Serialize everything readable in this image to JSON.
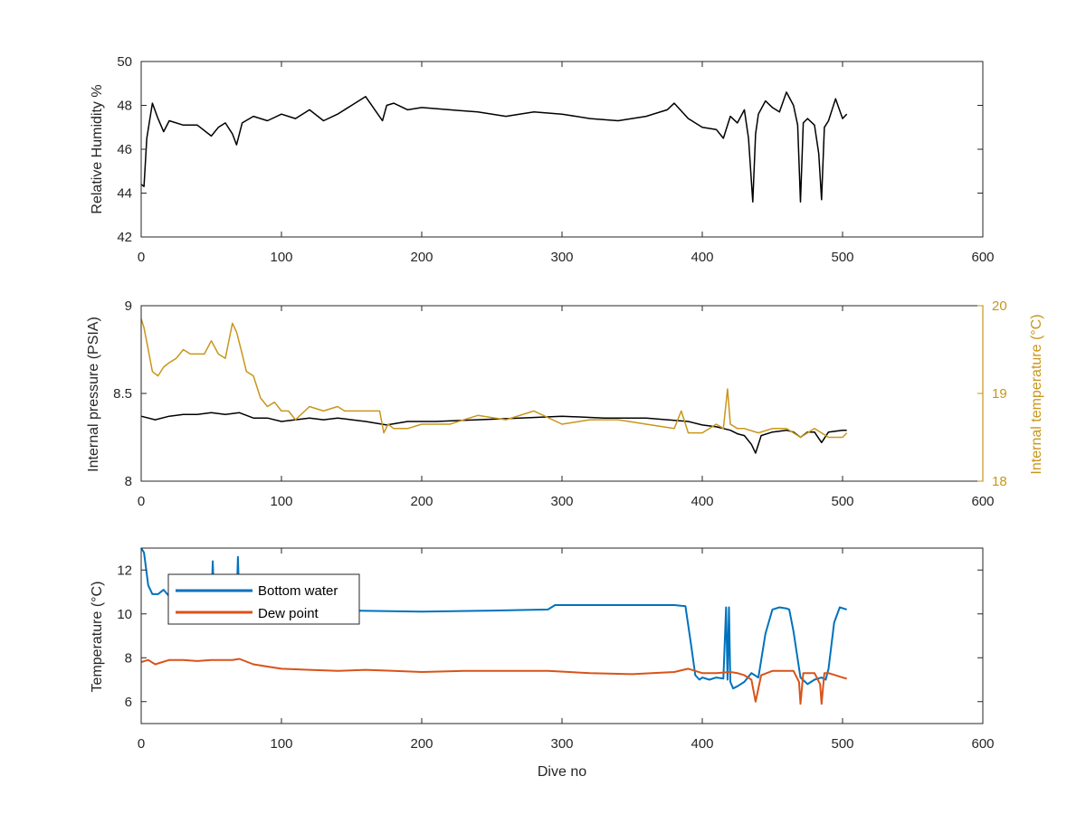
{
  "chart_data": [
    {
      "type": "line",
      "title": "",
      "xlabel": "",
      "ylabel": "Relative Humidity %",
      "xlim": [
        0,
        600
      ],
      "ylim": [
        42,
        50
      ],
      "xticks": [
        "0",
        "100",
        "200",
        "300",
        "400",
        "500",
        "600"
      ],
      "yticks": [
        "42",
        "44",
        "46",
        "48",
        "50"
      ],
      "grid": false,
      "series": [
        {
          "color": "#000000",
          "x": [
            0,
            2,
            4,
            8,
            12,
            16,
            20,
            30,
            40,
            50,
            55,
            60,
            65,
            68,
            72,
            80,
            90,
            100,
            110,
            120,
            130,
            140,
            150,
            160,
            172,
            175,
            180,
            190,
            200,
            220,
            240,
            260,
            280,
            300,
            320,
            340,
            360,
            375,
            380,
            390,
            400,
            410,
            415,
            420,
            425,
            430,
            433,
            436,
            438,
            440,
            445,
            450,
            455,
            460,
            465,
            468,
            470,
            472,
            475,
            480,
            483,
            485,
            487,
            490,
            495,
            500,
            503
          ],
          "y": [
            44.4,
            44.3,
            46.5,
            48.1,
            47.4,
            46.8,
            47.3,
            47.1,
            47.1,
            46.6,
            47.0,
            47.2,
            46.7,
            46.2,
            47.2,
            47.5,
            47.3,
            47.6,
            47.4,
            47.8,
            47.3,
            47.6,
            48.0,
            48.4,
            47.3,
            48.0,
            48.1,
            47.8,
            47.9,
            47.8,
            47.7,
            47.5,
            47.7,
            47.6,
            47.4,
            47.3,
            47.5,
            47.8,
            48.1,
            47.4,
            47.0,
            46.9,
            46.5,
            47.5,
            47.2,
            47.8,
            46.5,
            43.6,
            46.7,
            47.6,
            48.2,
            47.9,
            47.7,
            48.6,
            48.0,
            47.1,
            43.6,
            47.2,
            47.4,
            47.1,
            45.8,
            43.7,
            47.0,
            47.3,
            48.3,
            47.4,
            47.6
          ]
        }
      ]
    },
    {
      "type": "line",
      "title": "",
      "xlabel": "",
      "ylabel": "Internal pressure (PSIA)",
      "y2label": "Internal temperature (°C)",
      "xlim": [
        0,
        600
      ],
      "ylim": [
        8,
        9
      ],
      "y2lim": [
        18,
        20
      ],
      "xticks": [
        "0",
        "100",
        "200",
        "300",
        "400",
        "500",
        "600"
      ],
      "yticks": [
        "8",
        "8.5",
        "9"
      ],
      "y2ticks": [
        "18",
        "19",
        "20"
      ],
      "grid": false,
      "series": [
        {
          "axis": "left",
          "color": "#000000",
          "x": [
            0,
            10,
            20,
            30,
            40,
            50,
            60,
            70,
            80,
            90,
            100,
            110,
            120,
            130,
            140,
            150,
            160,
            175,
            190,
            210,
            240,
            270,
            300,
            330,
            360,
            390,
            400,
            410,
            420,
            425,
            430,
            435,
            438,
            442,
            450,
            460,
            465,
            470,
            475,
            480,
            485,
            490,
            500,
            503
          ],
          "y": [
            8.37,
            8.35,
            8.37,
            8.38,
            8.38,
            8.39,
            8.38,
            8.39,
            8.36,
            8.36,
            8.34,
            8.35,
            8.36,
            8.35,
            8.36,
            8.35,
            8.34,
            8.32,
            8.34,
            8.34,
            8.35,
            8.36,
            8.37,
            8.36,
            8.36,
            8.34,
            8.32,
            8.31,
            8.29,
            8.27,
            8.26,
            8.21,
            8.16,
            8.26,
            8.28,
            8.29,
            8.28,
            8.25,
            8.28,
            8.28,
            8.22,
            8.28,
            8.29,
            8.29
          ]
        },
        {
          "axis": "right",
          "color": "#C8961B",
          "x": [
            0,
            2,
            5,
            8,
            12,
            16,
            20,
            25,
            30,
            35,
            40,
            45,
            50,
            55,
            60,
            65,
            68,
            72,
            75,
            80,
            85,
            90,
            95,
            100,
            105,
            110,
            120,
            130,
            140,
            145,
            150,
            160,
            170,
            173,
            176,
            180,
            190,
            200,
            220,
            240,
            260,
            280,
            300,
            320,
            340,
            360,
            380,
            385,
            390,
            400,
            410,
            415,
            418,
            420,
            425,
            430,
            440,
            450,
            460,
            470,
            480,
            490,
            500,
            503
          ],
          "y": [
            19.85,
            19.75,
            19.5,
            19.25,
            19.2,
            19.3,
            19.35,
            19.4,
            19.5,
            19.45,
            19.45,
            19.45,
            19.6,
            19.45,
            19.4,
            19.8,
            19.7,
            19.45,
            19.25,
            19.2,
            18.95,
            18.85,
            18.9,
            18.8,
            18.8,
            18.7,
            18.85,
            18.8,
            18.85,
            18.8,
            18.8,
            18.8,
            18.8,
            18.55,
            18.65,
            18.6,
            18.6,
            18.65,
            18.65,
            18.75,
            18.7,
            18.8,
            18.65,
            18.7,
            18.7,
            18.65,
            18.6,
            18.8,
            18.55,
            18.55,
            18.65,
            18.6,
            19.05,
            18.65,
            18.6,
            18.6,
            18.55,
            18.6,
            18.6,
            18.5,
            18.6,
            18.5,
            18.5,
            18.55
          ]
        }
      ]
    },
    {
      "type": "line",
      "title": "",
      "xlabel": "Dive no",
      "ylabel": "Temperature (°C)",
      "xlim": [
        0,
        600
      ],
      "ylim": [
        5,
        13
      ],
      "xticks": [
        "0",
        "100",
        "200",
        "300",
        "400",
        "500",
        "600"
      ],
      "yticks": [
        "6",
        "8",
        "10",
        "12"
      ],
      "grid": false,
      "legend": "top-left",
      "series": [
        {
          "name": "Bottom water",
          "color": "#0072BD",
          "x": [
            0,
            2,
            5,
            8,
            12,
            16,
            20,
            25,
            30,
            40,
            50,
            51,
            52,
            55,
            60,
            68,
            69,
            70,
            72,
            80,
            100,
            120,
            150,
            200,
            250,
            290,
            295,
            300,
            350,
            380,
            388,
            392,
            395,
            398,
            400,
            405,
            410,
            415,
            417,
            418,
            419,
            420,
            422,
            425,
            430,
            435,
            440,
            445,
            450,
            455,
            460,
            462,
            465,
            470,
            475,
            480,
            485,
            488,
            490,
            494,
            498,
            503
          ],
          "y": [
            13.0,
            12.8,
            11.3,
            10.9,
            10.9,
            11.1,
            10.8,
            10.7,
            10.6,
            10.55,
            10.5,
            12.4,
            10.5,
            10.45,
            10.4,
            10.45,
            12.6,
            10.4,
            10.35,
            10.3,
            10.2,
            10.2,
            10.15,
            10.1,
            10.15,
            10.2,
            10.4,
            10.4,
            10.4,
            10.4,
            10.35,
            8.6,
            7.2,
            7.0,
            7.1,
            7.0,
            7.1,
            7.05,
            10.3,
            7.0,
            10.3,
            6.9,
            6.6,
            6.7,
            6.9,
            7.3,
            7.1,
            9.1,
            10.2,
            10.3,
            10.25,
            10.2,
            9.2,
            7.1,
            6.8,
            7.0,
            7.1,
            7.0,
            7.5,
            9.6,
            10.3,
            10.2
          ]
        },
        {
          "name": "Dew point",
          "color": "#D95319",
          "x": [
            0,
            5,
            10,
            20,
            30,
            40,
            50,
            60,
            65,
            70,
            80,
            90,
            100,
            120,
            140,
            160,
            180,
            200,
            230,
            260,
            290,
            320,
            350,
            380,
            390,
            400,
            410,
            420,
            425,
            430,
            435,
            438,
            442,
            450,
            460,
            465,
            469,
            470,
            472,
            480,
            484,
            485,
            487,
            490,
            500,
            503
          ],
          "y": [
            7.8,
            7.9,
            7.7,
            7.9,
            7.9,
            7.85,
            7.9,
            7.9,
            7.9,
            7.95,
            7.7,
            7.6,
            7.5,
            7.45,
            7.4,
            7.45,
            7.4,
            7.35,
            7.4,
            7.4,
            7.4,
            7.3,
            7.25,
            7.35,
            7.5,
            7.3,
            7.3,
            7.35,
            7.3,
            7.2,
            7.0,
            6.0,
            7.2,
            7.4,
            7.4,
            7.4,
            6.9,
            5.9,
            7.3,
            7.3,
            6.8,
            5.9,
            7.3,
            7.3,
            7.1,
            7.05
          ]
        }
      ]
    }
  ]
}
